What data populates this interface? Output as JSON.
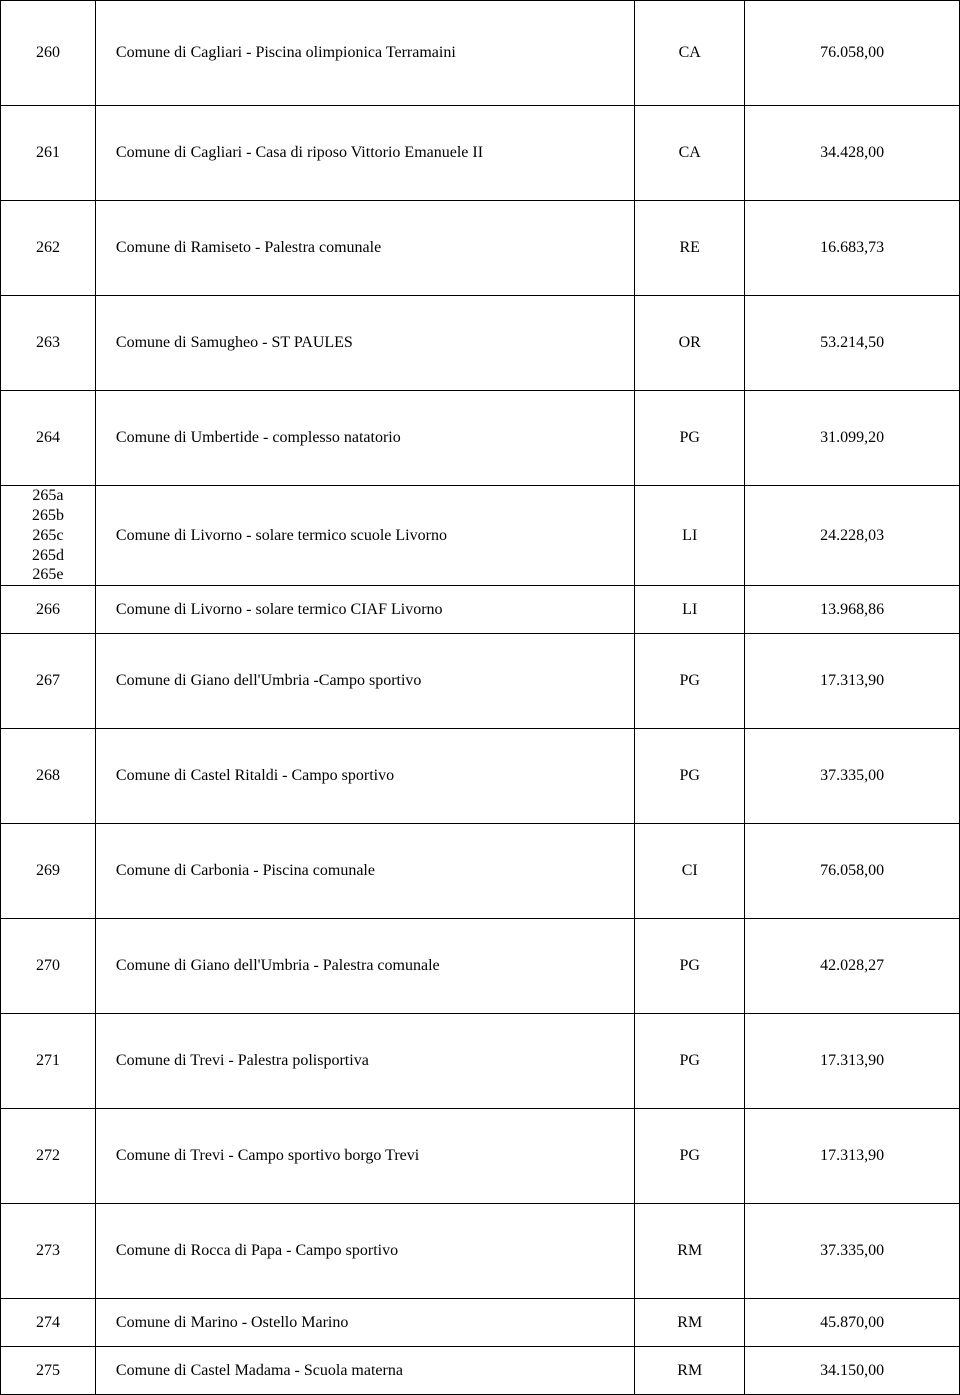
{
  "rows": [
    {
      "id": "260",
      "desc": "Comune di Cagliari - Piscina olimpionica Terramaini",
      "code": "CA",
      "val": "76.058,00",
      "h": "tall"
    },
    {
      "id": "261",
      "desc": "Comune di Cagliari - Casa di riposo Vittorio Emanuele II",
      "code": "CA",
      "val": "34.428,00",
      "h": "med"
    },
    {
      "id": "262",
      "desc": "Comune di Ramiseto - Palestra comunale",
      "code": "RE",
      "val": "16.683,73",
      "h": "med"
    },
    {
      "id": "263",
      "desc": "Comune di Samugheo - ST PAULES",
      "code": "OR",
      "val": "53.214,50",
      "h": "med"
    },
    {
      "id": "264",
      "desc": "Comune di Umbertide - complesso natatorio",
      "code": "PG",
      "val": "31.099,20",
      "h": "med"
    }
  ],
  "group265": {
    "ids": [
      "265a",
      "265b",
      "265c",
      "265d",
      "265e"
    ],
    "desc": "Comune di Livorno - solare termico scuole Livorno",
    "code": "LI",
    "val": "24.228,03"
  },
  "rows2": [
    {
      "id": "266",
      "desc": "Comune di Livorno - solare termico CIAF Livorno",
      "code": "LI",
      "val": "13.968,86",
      "h": "short"
    },
    {
      "id": "267",
      "desc": "Comune di Giano dell'Umbria -Campo sportivo",
      "code": "PG",
      "val": "17.313,90",
      "h": "med"
    },
    {
      "id": "268",
      "desc": "Comune di Castel Ritaldi - Campo sportivo",
      "code": "PG",
      "val": "37.335,00",
      "h": "med"
    },
    {
      "id": "269",
      "desc": "Comune di Carbonia - Piscina comunale",
      "code": "CI",
      "val": "76.058,00",
      "h": "med"
    },
    {
      "id": "270",
      "desc": "Comune di Giano dell'Umbria - Palestra comunale",
      "code": "PG",
      "val": "42.028,27",
      "h": "med"
    },
    {
      "id": "271",
      "desc": "Comune di Trevi - Palestra polisportiva",
      "code": "PG",
      "val": "17.313,90",
      "h": "med"
    },
    {
      "id": "272",
      "desc": "Comune di Trevi - Campo sportivo borgo Trevi",
      "code": "PG",
      "val": "17.313,90",
      "h": "med"
    },
    {
      "id": "273",
      "desc": "Comune di Rocca di Papa - Campo sportivo",
      "code": "RM",
      "val": "37.335,00",
      "h": "med"
    },
    {
      "id": "274",
      "desc": "Comune di Marino - Ostello Marino",
      "code": "RM",
      "val": "45.870,00",
      "h": "short"
    },
    {
      "id": "275",
      "desc": "Comune di Castel Madama - Scuola materna",
      "code": "RM",
      "val": "34.150,00",
      "h": "short"
    }
  ]
}
